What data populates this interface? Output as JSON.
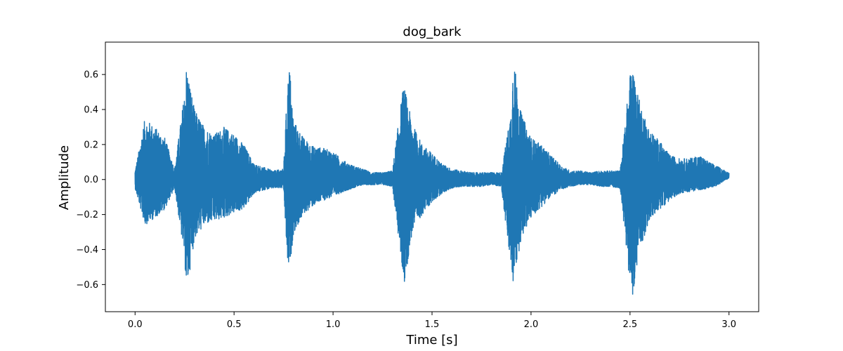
{
  "chart_data": {
    "type": "line",
    "title": "dog_bark",
    "xlabel": "Time [s]",
    "ylabel": "Amplitude",
    "xlim": [
      -0.15,
      3.15
    ],
    "ylim": [
      -0.755,
      0.785
    ],
    "xticks": [
      0.0,
      0.5,
      1.0,
      1.5,
      2.0,
      2.5,
      3.0
    ],
    "xtick_labels": [
      "0.0",
      "0.5",
      "1.0",
      "1.5",
      "2.0",
      "2.5",
      "3.0"
    ],
    "yticks": [
      -0.6,
      -0.4,
      -0.2,
      0.0,
      0.2,
      0.4,
      0.6
    ],
    "ytick_labels": [
      "−0.6",
      "−0.4",
      "−0.2",
      "0.0",
      "0.2",
      "0.4",
      "0.6"
    ],
    "grid": false,
    "color": "#1f77b4",
    "series": [
      {
        "x": [
          0.0,
          0.05,
          0.1,
          0.15,
          0.2,
          0.25,
          0.26,
          0.3,
          0.35,
          0.4,
          0.45,
          0.5,
          0.55,
          0.6,
          0.65,
          0.7,
          0.75,
          0.77,
          0.78,
          0.8,
          0.85,
          0.9,
          0.95,
          1.0,
          1.05,
          1.1,
          1.15,
          1.2,
          1.25,
          1.3,
          1.35,
          1.36,
          1.4,
          1.45,
          1.5,
          1.55,
          1.6,
          1.65,
          1.7,
          1.75,
          1.8,
          1.85,
          1.9,
          1.91,
          1.95,
          2.0,
          2.05,
          2.1,
          2.15,
          2.2,
          2.25,
          2.3,
          2.35,
          2.4,
          2.45,
          2.5,
          2.51,
          2.55,
          2.6,
          2.65,
          2.7,
          2.75,
          2.8,
          2.85,
          2.9,
          2.95,
          3.0
        ],
        "y_max": [
          0.05,
          0.35,
          0.3,
          0.24,
          0.06,
          0.5,
          0.66,
          0.4,
          0.3,
          0.26,
          0.3,
          0.26,
          0.2,
          0.09,
          0.07,
          0.05,
          0.06,
          0.55,
          0.66,
          0.34,
          0.24,
          0.19,
          0.18,
          0.16,
          0.11,
          0.08,
          0.06,
          0.04,
          0.04,
          0.05,
          0.5,
          0.53,
          0.32,
          0.2,
          0.15,
          0.09,
          0.06,
          0.05,
          0.04,
          0.04,
          0.04,
          0.04,
          0.4,
          0.71,
          0.38,
          0.24,
          0.2,
          0.14,
          0.08,
          0.05,
          0.05,
          0.04,
          0.05,
          0.05,
          0.05,
          0.6,
          0.66,
          0.44,
          0.28,
          0.22,
          0.14,
          0.12,
          0.12,
          0.14,
          0.1,
          0.07,
          0.04
        ],
        "y_min": [
          -0.05,
          -0.26,
          -0.22,
          -0.17,
          -0.05,
          -0.45,
          -0.65,
          -0.34,
          -0.26,
          -0.24,
          -0.22,
          -0.19,
          -0.17,
          -0.08,
          -0.06,
          -0.05,
          -0.05,
          -0.49,
          -0.52,
          -0.31,
          -0.2,
          -0.15,
          -0.12,
          -0.1,
          -0.07,
          -0.05,
          -0.03,
          -0.03,
          -0.03,
          -0.04,
          -0.52,
          -0.6,
          -0.3,
          -0.2,
          -0.13,
          -0.08,
          -0.05,
          -0.04,
          -0.04,
          -0.04,
          -0.03,
          -0.04,
          -0.53,
          -0.6,
          -0.34,
          -0.22,
          -0.16,
          -0.1,
          -0.06,
          -0.04,
          -0.03,
          -0.03,
          -0.04,
          -0.04,
          -0.05,
          -0.6,
          -0.68,
          -0.4,
          -0.23,
          -0.17,
          -0.12,
          -0.08,
          -0.07,
          -0.06,
          -0.05,
          -0.03,
          0.02
        ]
      }
    ]
  }
}
